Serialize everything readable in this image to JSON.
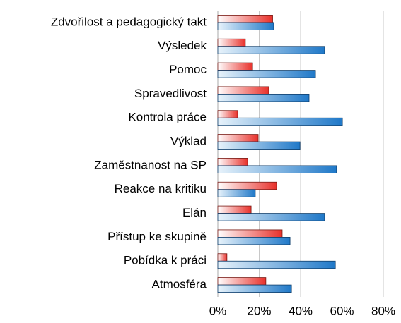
{
  "chart_data": {
    "type": "hbar",
    "categories": [
      "Zdvořilost a pedagogický takt",
      "Výsledek",
      "Pomoc",
      "Spravedlivost",
      "Kontrola práce",
      "Výklad",
      "Zaměstnanost na SP",
      "Reakce na kritiku",
      "Elán",
      "Přístup ke skupině",
      "Pobídka k práci",
      "Atmosféra"
    ],
    "series": [
      {
        "color": "#e8302a",
        "values": [
          26.5,
          13.3,
          16.8,
          24.6,
          9.6,
          19.5,
          14.4,
          28.4,
          16.1,
          31.1,
          4.4,
          23.2
        ]
      },
      {
        "color": "#1f78c8",
        "values": [
          27,
          51.6,
          47.2,
          44.1,
          60.2,
          39.7,
          57.4,
          18.1,
          51.6,
          34.9,
          56.8,
          35.6
        ]
      }
    ],
    "xlim": [
      0,
      80
    ],
    "xticks": [
      {
        "value": 0,
        "label": "0%"
      },
      {
        "value": 20,
        "label": "20%"
      },
      {
        "value": 40,
        "label": "40%"
      },
      {
        "value": 60,
        "label": "60%"
      },
      {
        "value": 80,
        "label": "80%"
      }
    ],
    "grid": true
  }
}
